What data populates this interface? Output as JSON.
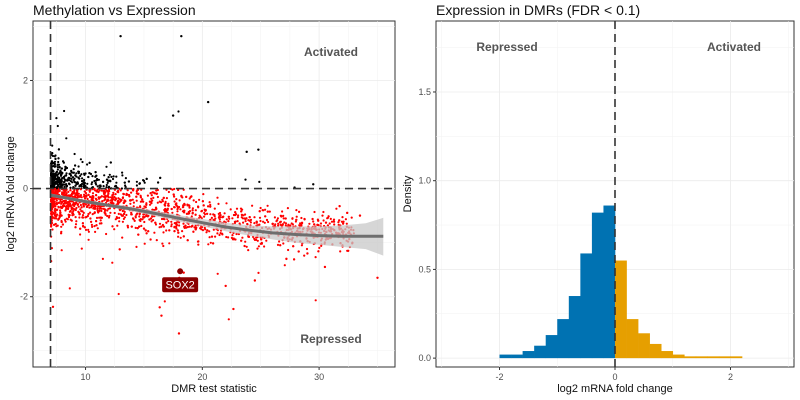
{
  "colors": {
    "up": "#000000",
    "down": "#ff0000",
    "highlight": "#8b0000",
    "trend": "#6e6e6e",
    "band": "#c8c8c8",
    "repressed_bar": "#0072b2",
    "activated_bar": "#e69f00"
  },
  "chart_data": [
    {
      "type": "scatter",
      "title": "Methylation vs Expression",
      "xlabel": "DMR test statistic",
      "ylabel": "log2 mRNA fold change",
      "xlim": [
        5.5,
        36.5
      ],
      "ylim": [
        -3.3,
        3.1
      ],
      "xticks": [
        10,
        20,
        30
      ],
      "yticks": [
        -2,
        0,
        2
      ],
      "grid": true,
      "vline": 7,
      "hline": 0,
      "annotations": {
        "top": "Activated",
        "bottom": "Repressed"
      },
      "highlight": {
        "label": "SOX2",
        "x": 18.1,
        "y": -1.53
      },
      "trend": {
        "x": [
          7,
          8,
          10,
          12,
          14,
          16,
          18,
          20,
          22,
          24,
          26,
          28,
          30,
          32,
          34,
          35.5
        ],
        "y": [
          -0.12,
          -0.16,
          -0.24,
          -0.31,
          -0.38,
          -0.46,
          -0.55,
          -0.63,
          -0.71,
          -0.77,
          -0.82,
          -0.85,
          -0.87,
          -0.88,
          -0.88,
          -0.88
        ],
        "lo": [
          -0.15,
          -0.19,
          -0.27,
          -0.34,
          -0.42,
          -0.51,
          -0.61,
          -0.7,
          -0.79,
          -0.87,
          -0.94,
          -1.0,
          -1.04,
          -1.08,
          -1.12,
          -1.24
        ],
        "hi": [
          -0.09,
          -0.13,
          -0.21,
          -0.28,
          -0.34,
          -0.41,
          -0.49,
          -0.56,
          -0.63,
          -0.68,
          -0.7,
          -0.7,
          -0.7,
          -0.68,
          -0.64,
          -0.54
        ]
      },
      "outliers": [
        [
          13.0,
          2.82
        ],
        [
          18.2,
          2.82
        ],
        [
          20.5,
          1.6
        ],
        [
          17.5,
          1.35
        ],
        [
          23.8,
          0.68
        ],
        [
          24.8,
          0.72
        ],
        [
          27.9,
          0.02
        ],
        [
          29.5,
          0.08
        ],
        [
          33.5,
          -0.5
        ],
        [
          35.0,
          -1.65
        ],
        [
          27.2,
          -1.3
        ],
        [
          30.5,
          -1.45
        ],
        [
          16.5,
          -2.35
        ],
        [
          18.0,
          -2.68
        ],
        [
          22.0,
          -1.8
        ],
        [
          24.5,
          -1.7
        ],
        [
          29.0,
          -1.2
        ],
        [
          32.0,
          -1.05
        ]
      ]
    },
    {
      "type": "histogram",
      "title": "Expression in DMRs (FDR < 0.1)",
      "xlabel": "log2 mRNA fold change",
      "ylabel": "Density",
      "xlim": [
        -3.1,
        3.1
      ],
      "ylim": [
        -0.05,
        1.9
      ],
      "xticks": [
        -2,
        0,
        2
      ],
      "yticks": [
        0.0,
        0.5,
        1.0,
        1.5
      ],
      "grid": true,
      "vline": 0,
      "annotations": {
        "left": "Repressed",
        "right": "Activated"
      },
      "bin_width": 0.2,
      "repressed_bins": [
        {
          "x0": -2.0,
          "d": 0.02
        },
        {
          "x0": -1.8,
          "d": 0.02
        },
        {
          "x0": -1.6,
          "d": 0.04
        },
        {
          "x0": -1.4,
          "d": 0.07
        },
        {
          "x0": -1.2,
          "d": 0.13
        },
        {
          "x0": -1.0,
          "d": 0.22
        },
        {
          "x0": -0.8,
          "d": 0.35
        },
        {
          "x0": -0.6,
          "d": 0.59
        },
        {
          "x0": -0.4,
          "d": 0.82
        },
        {
          "x0": -0.2,
          "d": 0.86
        }
      ],
      "activated_bins": [
        {
          "x0": 0.0,
          "d": 0.55
        },
        {
          "x0": 0.2,
          "d": 0.22
        },
        {
          "x0": 0.4,
          "d": 0.14
        },
        {
          "x0": 0.6,
          "d": 0.08
        },
        {
          "x0": 0.8,
          "d": 0.04
        },
        {
          "x0": 1.0,
          "d": 0.02
        },
        {
          "x0": 1.2,
          "d": 0.01
        },
        {
          "x0": 1.4,
          "d": 0.01
        },
        {
          "x0": 1.6,
          "d": 0.01
        },
        {
          "x0": 1.8,
          "d": 0.01
        },
        {
          "x0": 2.0,
          "d": 0.01
        }
      ]
    }
  ]
}
